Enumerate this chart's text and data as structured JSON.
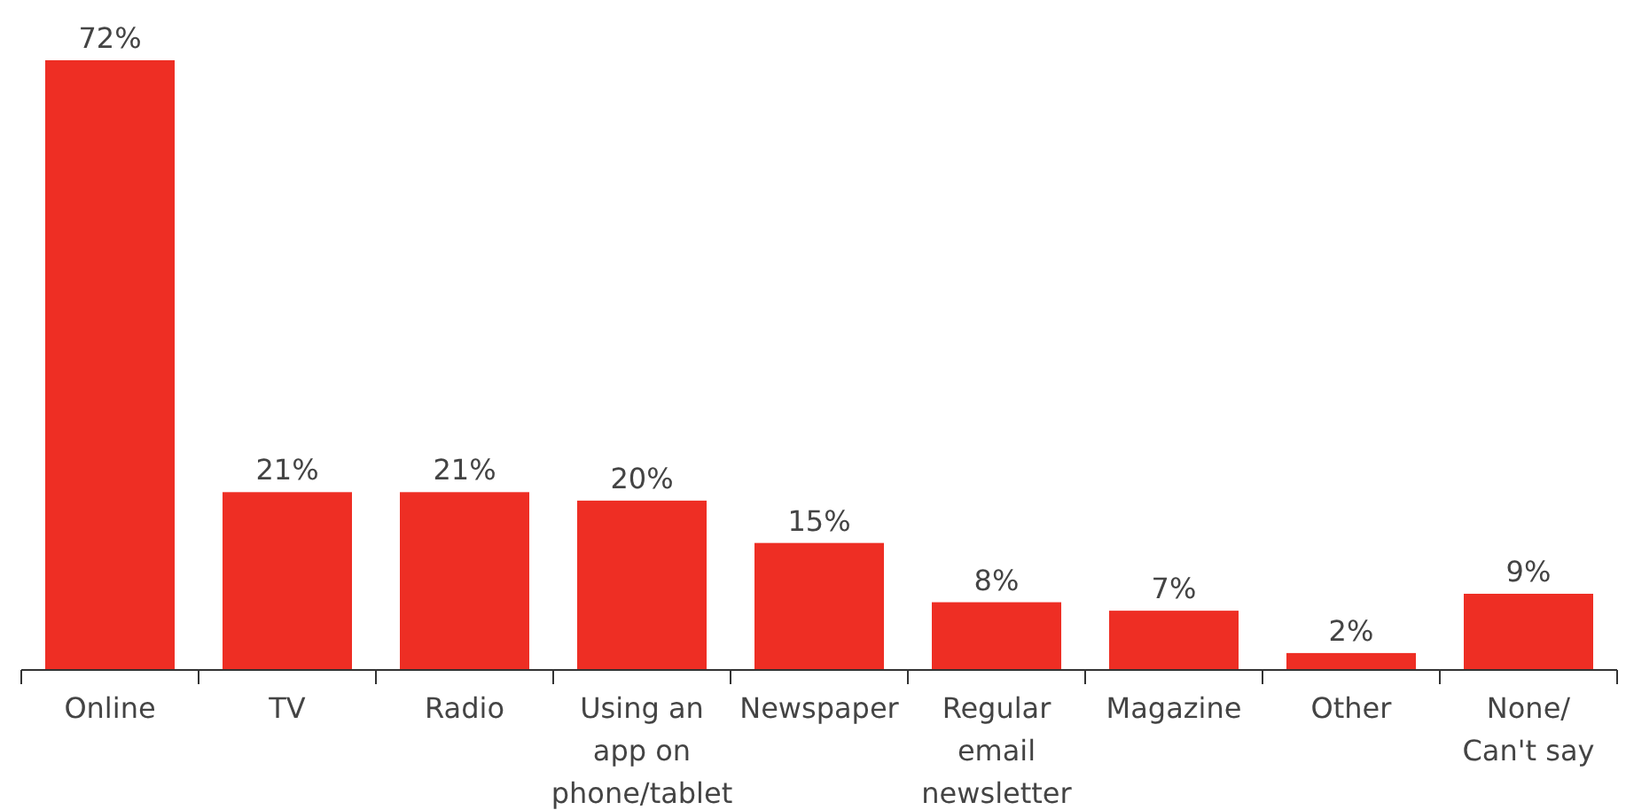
{
  "chart_data": {
    "type": "bar",
    "categories": [
      "Online",
      "TV",
      "Radio",
      "Using an app on phone/tablet",
      "Newspaper",
      "Regular email newsletter",
      "Magazine",
      "Other",
      "None/ Can't say"
    ],
    "values": [
      72,
      21,
      21,
      20,
      15,
      8,
      7,
      2,
      9
    ],
    "color": "#ee2e24",
    "value_labels": [
      "72%",
      "21%",
      "21%",
      "20%",
      "15%",
      "8%",
      "7%",
      "2%",
      "9%"
    ]
  }
}
